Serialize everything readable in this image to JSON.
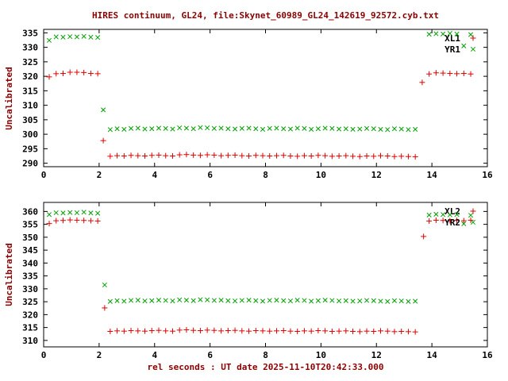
{
  "title": "HIRES continuum, GL24, file:Skynet_60989_GL24_142619_92572.cyb.txt",
  "xlabel": "rel seconds : UT date 2025-11-10T20:42:33.000",
  "colors": {
    "title_text": "#8b0000",
    "axis_text": "#000000",
    "series_red": "#e00000",
    "series_green": "#00a000",
    "background": "#ffffff"
  },
  "chart_data": [
    {
      "type": "scatter",
      "title": "",
      "ylabel": "Uncalibrated",
      "xlim": [
        0,
        16
      ],
      "ylim": [
        290,
        335
      ],
      "xticks": [
        0,
        2,
        4,
        6,
        8,
        10,
        12,
        14,
        16
      ],
      "yticks": [
        290,
        295,
        300,
        305,
        310,
        315,
        320,
        325,
        330,
        335
      ],
      "grid": false,
      "legend_position": "top-right",
      "series": [
        {
          "name": "XL1",
          "marker": "plus",
          "color": "#e00000",
          "points": [
            [
              0.2,
              319.8
            ],
            [
              0.45,
              320.9
            ],
            [
              0.7,
              321.0
            ],
            [
              0.95,
              321.4
            ],
            [
              1.2,
              321.4
            ],
            [
              1.45,
              321.3
            ],
            [
              1.7,
              321.0
            ],
            [
              1.95,
              320.9
            ],
            [
              2.15,
              297.8
            ],
            [
              2.4,
              292.4
            ],
            [
              2.65,
              292.6
            ],
            [
              2.9,
              292.5
            ],
            [
              3.15,
              292.7
            ],
            [
              3.4,
              292.6
            ],
            [
              3.65,
              292.5
            ],
            [
              3.9,
              292.7
            ],
            [
              4.15,
              292.8
            ],
            [
              4.4,
              292.6
            ],
            [
              4.65,
              292.5
            ],
            [
              4.9,
              292.9
            ],
            [
              5.15,
              293.0
            ],
            [
              5.4,
              292.8
            ],
            [
              5.65,
              292.7
            ],
            [
              5.9,
              292.9
            ],
            [
              6.15,
              292.8
            ],
            [
              6.4,
              292.6
            ],
            [
              6.65,
              292.7
            ],
            [
              6.9,
              292.8
            ],
            [
              7.15,
              292.6
            ],
            [
              7.4,
              292.5
            ],
            [
              7.65,
              292.7
            ],
            [
              7.9,
              292.6
            ],
            [
              8.15,
              292.5
            ],
            [
              8.4,
              292.6
            ],
            [
              8.65,
              292.7
            ],
            [
              8.9,
              292.5
            ],
            [
              9.15,
              292.4
            ],
            [
              9.4,
              292.6
            ],
            [
              9.65,
              292.5
            ],
            [
              9.9,
              292.7
            ],
            [
              10.15,
              292.6
            ],
            [
              10.4,
              292.4
            ],
            [
              10.65,
              292.5
            ],
            [
              10.9,
              292.6
            ],
            [
              11.15,
              292.4
            ],
            [
              11.4,
              292.3
            ],
            [
              11.65,
              292.5
            ],
            [
              11.9,
              292.4
            ],
            [
              12.15,
              292.6
            ],
            [
              12.4,
              292.5
            ],
            [
              12.65,
              292.3
            ],
            [
              12.9,
              292.4
            ],
            [
              13.15,
              292.3
            ],
            [
              13.4,
              292.2
            ],
            [
              13.65,
              317.9
            ],
            [
              13.9,
              320.8
            ],
            [
              14.15,
              321.2
            ],
            [
              14.4,
              321.1
            ],
            [
              14.65,
              321.0
            ],
            [
              14.9,
              320.9
            ],
            [
              15.15,
              321.0
            ],
            [
              15.4,
              320.8
            ]
          ]
        },
        {
          "name": "YR1",
          "marker": "cross",
          "color": "#00a000",
          "points": [
            [
              0.2,
              332.4
            ],
            [
              0.45,
              333.6
            ],
            [
              0.7,
              333.5
            ],
            [
              0.95,
              333.7
            ],
            [
              1.2,
              333.6
            ],
            [
              1.45,
              333.8
            ],
            [
              1.7,
              333.5
            ],
            [
              1.95,
              333.4
            ],
            [
              2.15,
              308.4
            ],
            [
              2.4,
              301.6
            ],
            [
              2.65,
              301.9
            ],
            [
              2.9,
              301.7
            ],
            [
              3.15,
              302.0
            ],
            [
              3.4,
              302.1
            ],
            [
              3.65,
              301.8
            ],
            [
              3.9,
              301.9
            ],
            [
              4.15,
              302.1
            ],
            [
              4.4,
              302.0
            ],
            [
              4.65,
              301.8
            ],
            [
              4.9,
              302.2
            ],
            [
              5.15,
              302.1
            ],
            [
              5.4,
              301.9
            ],
            [
              5.65,
              302.3
            ],
            [
              5.9,
              302.2
            ],
            [
              6.15,
              302.0
            ],
            [
              6.4,
              302.1
            ],
            [
              6.65,
              301.9
            ],
            [
              6.9,
              301.8
            ],
            [
              7.15,
              302.0
            ],
            [
              7.4,
              302.1
            ],
            [
              7.65,
              301.9
            ],
            [
              7.9,
              301.7
            ],
            [
              8.15,
              302.0
            ],
            [
              8.4,
              302.1
            ],
            [
              8.65,
              301.9
            ],
            [
              8.9,
              301.8
            ],
            [
              9.15,
              302.1
            ],
            [
              9.4,
              302.0
            ],
            [
              9.65,
              301.7
            ],
            [
              9.9,
              301.9
            ],
            [
              10.15,
              302.1
            ],
            [
              10.4,
              302.0
            ],
            [
              10.65,
              301.8
            ],
            [
              10.9,
              301.9
            ],
            [
              11.15,
              301.7
            ],
            [
              11.4,
              301.8
            ],
            [
              11.65,
              302.0
            ],
            [
              11.9,
              301.9
            ],
            [
              12.15,
              301.7
            ],
            [
              12.4,
              301.6
            ],
            [
              12.65,
              301.9
            ],
            [
              12.9,
              301.8
            ],
            [
              13.15,
              301.6
            ],
            [
              13.4,
              301.7
            ],
            [
              13.9,
              334.5
            ],
            [
              14.15,
              334.7
            ],
            [
              14.4,
              334.6
            ],
            [
              14.65,
              334.8
            ],
            [
              14.9,
              334.6
            ],
            [
              15.15,
              330.5
            ],
            [
              15.4,
              334.4
            ]
          ]
        }
      ]
    },
    {
      "type": "scatter",
      "title": "",
      "ylabel": "Uncalibrated",
      "xlim": [
        0,
        16
      ],
      "ylim": [
        310,
        360
      ],
      "xticks": [
        0,
        2,
        4,
        6,
        8,
        10,
        12,
        14,
        16
      ],
      "yticks": [
        310,
        315,
        320,
        325,
        330,
        335,
        340,
        345,
        350,
        355,
        360
      ],
      "grid": false,
      "legend_position": "top-right",
      "series": [
        {
          "name": "XL2",
          "marker": "plus",
          "color": "#e00000",
          "points": [
            [
              0.2,
              355.3
            ],
            [
              0.45,
              356.4
            ],
            [
              0.7,
              356.5
            ],
            [
              0.95,
              356.7
            ],
            [
              1.2,
              356.6
            ],
            [
              1.45,
              356.5
            ],
            [
              1.7,
              356.4
            ],
            [
              1.95,
              356.3
            ],
            [
              2.2,
              322.6
            ],
            [
              2.4,
              313.5
            ],
            [
              2.65,
              313.7
            ],
            [
              2.9,
              313.6
            ],
            [
              3.15,
              313.8
            ],
            [
              3.4,
              313.7
            ],
            [
              3.65,
              313.6
            ],
            [
              3.9,
              313.8
            ],
            [
              4.15,
              313.9
            ],
            [
              4.4,
              313.7
            ],
            [
              4.65,
              313.6
            ],
            [
              4.9,
              314.0
            ],
            [
              5.15,
              314.1
            ],
            [
              5.4,
              313.9
            ],
            [
              5.65,
              313.8
            ],
            [
              5.9,
              314.0
            ],
            [
              6.15,
              313.9
            ],
            [
              6.4,
              313.7
            ],
            [
              6.65,
              313.8
            ],
            [
              6.9,
              313.9
            ],
            [
              7.15,
              313.7
            ],
            [
              7.4,
              313.6
            ],
            [
              7.65,
              313.8
            ],
            [
              7.9,
              313.7
            ],
            [
              8.15,
              313.6
            ],
            [
              8.4,
              313.7
            ],
            [
              8.65,
              313.8
            ],
            [
              8.9,
              313.6
            ],
            [
              9.15,
              313.5
            ],
            [
              9.4,
              313.7
            ],
            [
              9.65,
              313.6
            ],
            [
              9.9,
              313.8
            ],
            [
              10.15,
              313.7
            ],
            [
              10.4,
              313.5
            ],
            [
              10.65,
              313.6
            ],
            [
              10.9,
              313.7
            ],
            [
              11.15,
              313.5
            ],
            [
              11.4,
              313.4
            ],
            [
              11.65,
              313.6
            ],
            [
              11.9,
              313.5
            ],
            [
              12.15,
              313.7
            ],
            [
              12.4,
              313.6
            ],
            [
              12.65,
              313.4
            ],
            [
              12.9,
              313.5
            ],
            [
              13.15,
              313.4
            ],
            [
              13.4,
              313.3
            ],
            [
              13.7,
              350.3
            ],
            [
              13.9,
              356.3
            ],
            [
              14.15,
              356.6
            ],
            [
              14.4,
              356.5
            ],
            [
              14.65,
              356.4
            ],
            [
              14.9,
              356.5
            ],
            [
              15.15,
              356.4
            ],
            [
              15.4,
              356.6
            ]
          ]
        },
        {
          "name": "YR2",
          "marker": "cross",
          "color": "#00a000",
          "points": [
            [
              0.2,
              358.8
            ],
            [
              0.45,
              359.5
            ],
            [
              0.7,
              359.4
            ],
            [
              0.95,
              359.6
            ],
            [
              1.2,
              359.5
            ],
            [
              1.45,
              359.7
            ],
            [
              1.7,
              359.4
            ],
            [
              1.95,
              359.3
            ],
            [
              2.2,
              331.5
            ],
            [
              2.4,
              325.1
            ],
            [
              2.65,
              325.4
            ],
            [
              2.9,
              325.2
            ],
            [
              3.15,
              325.5
            ],
            [
              3.4,
              325.6
            ],
            [
              3.65,
              325.3
            ],
            [
              3.9,
              325.4
            ],
            [
              4.15,
              325.6
            ],
            [
              4.4,
              325.5
            ],
            [
              4.65,
              325.3
            ],
            [
              4.9,
              325.7
            ],
            [
              5.15,
              325.6
            ],
            [
              5.4,
              325.4
            ],
            [
              5.65,
              325.8
            ],
            [
              5.9,
              325.7
            ],
            [
              6.15,
              325.5
            ],
            [
              6.4,
              325.6
            ],
            [
              6.65,
              325.4
            ],
            [
              6.9,
              325.3
            ],
            [
              7.15,
              325.5
            ],
            [
              7.4,
              325.6
            ],
            [
              7.65,
              325.4
            ],
            [
              7.9,
              325.2
            ],
            [
              8.15,
              325.5
            ],
            [
              8.4,
              325.6
            ],
            [
              8.65,
              325.4
            ],
            [
              8.9,
              325.3
            ],
            [
              9.15,
              325.6
            ],
            [
              9.4,
              325.5
            ],
            [
              9.65,
              325.2
            ],
            [
              9.9,
              325.4
            ],
            [
              10.15,
              325.6
            ],
            [
              10.4,
              325.5
            ],
            [
              10.65,
              325.3
            ],
            [
              10.9,
              325.4
            ],
            [
              11.15,
              325.2
            ],
            [
              11.4,
              325.3
            ],
            [
              11.65,
              325.5
            ],
            [
              11.9,
              325.4
            ],
            [
              12.15,
              325.2
            ],
            [
              12.4,
              325.1
            ],
            [
              12.65,
              325.4
            ],
            [
              12.9,
              325.3
            ],
            [
              13.15,
              325.1
            ],
            [
              13.4,
              325.2
            ],
            [
              13.9,
              358.6
            ],
            [
              14.15,
              358.9
            ],
            [
              14.4,
              358.8
            ],
            [
              14.65,
              358.7
            ],
            [
              14.9,
              358.8
            ],
            [
              15.15,
              355.2
            ],
            [
              15.4,
              358.5
            ]
          ]
        }
      ]
    }
  ]
}
